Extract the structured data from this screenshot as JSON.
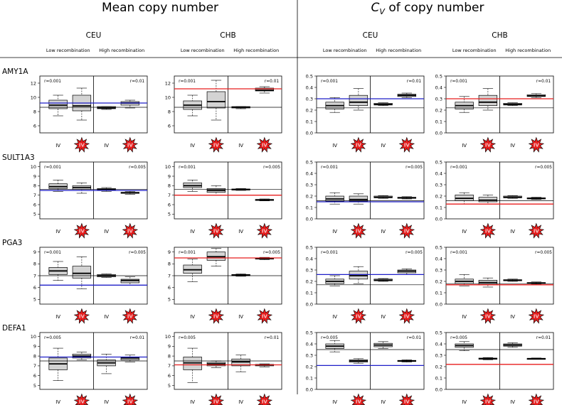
{
  "figure": {
    "left_title": "Mean copy number",
    "right_title_prefix": "C",
    "right_title_subscript": "V",
    "right_title_suffix": " of copy number",
    "populations": [
      "CEU",
      "CHB",
      "CEU",
      "CHB"
    ],
    "low_recombination_label": "Low recombination",
    "high_recombination_label": "High recombination",
    "tick_label_iv": "IV",
    "colors": {
      "blue_line": "#1f1fc8",
      "red_line": "#e81e1e",
      "star_fill": "#e61d1d",
      "star_text": "#f4c4c4",
      "box_fill": "#d3d3d3"
    }
  },
  "chart_data": [
    {
      "type": "box",
      "gene": "AMY1A",
      "measure": "Mean copy number",
      "population": "CEU",
      "yticks": [
        "12",
        "10",
        "8",
        "6"
      ],
      "ylim": [
        5,
        13
      ],
      "r_low": "r=0.001",
      "r_high": "r=0.01",
      "boxes": [
        [
          7.4,
          8.4,
          8.9,
          9.6,
          10.3
        ],
        [
          6.8,
          8.1,
          8.8,
          10.3,
          11.3
        ],
        [
          8.3,
          8.4,
          8.5,
          8.7,
          8.7
        ],
        [
          8.5,
          8.9,
          9.2,
          9.4,
          9.6
        ]
      ],
      "hlines": [
        {
          "y": 9.2,
          "color": "blue"
        },
        {
          "y": 8.6,
          "color": "black"
        }
      ]
    },
    {
      "type": "box",
      "gene": "AMY1A",
      "measure": "Mean copy number",
      "population": "CHB",
      "yticks": [
        "12",
        "10",
        "8",
        "6"
      ],
      "ylim": [
        5,
        13
      ],
      "r_low": "r=0.001",
      "r_high": "r=0.01",
      "boxes": [
        [
          7.4,
          8.3,
          8.9,
          9.5,
          10.3
        ],
        [
          6.8,
          8.5,
          9.4,
          10.8,
          12.4
        ],
        [
          8.4,
          8.5,
          8.6,
          8.7,
          8.7
        ],
        [
          10.6,
          10.9,
          11.0,
          11.3,
          11.5
        ]
      ],
      "hlines": [
        {
          "y": 11.2,
          "color": "red"
        },
        {
          "y": 8.6,
          "color": "black"
        }
      ]
    },
    {
      "type": "box",
      "gene": "AMY1A",
      "measure": "CV of copy number",
      "population": "CEU",
      "yticks": [
        "0.5",
        "0.4",
        "0.3",
        "0.2",
        "0.1",
        "0.0"
      ],
      "ylim": [
        0,
        0.5
      ],
      "r_low": "r=0.001",
      "r_high": "r=0.01",
      "boxes": [
        [
          0.18,
          0.21,
          0.24,
          0.27,
          0.31
        ],
        [
          0.2,
          0.24,
          0.27,
          0.33,
          0.39
        ],
        [
          0.24,
          0.245,
          0.25,
          0.26,
          0.265
        ],
        [
          0.31,
          0.32,
          0.33,
          0.34,
          0.35
        ]
      ],
      "hlines": [
        {
          "y": 0.3,
          "color": "blue"
        },
        {
          "y": 0.22,
          "color": "black"
        }
      ]
    },
    {
      "type": "box",
      "gene": "AMY1A",
      "measure": "CV of copy number",
      "population": "CHB",
      "yticks": [
        "0.5",
        "0.4",
        "0.3",
        "0.2",
        "0.1",
        "0.0"
      ],
      "ylim": [
        0,
        0.5
      ],
      "r_low": "r=0.001",
      "r_high": "r=0.01",
      "boxes": [
        [
          0.18,
          0.21,
          0.24,
          0.27,
          0.32
        ],
        [
          0.2,
          0.24,
          0.27,
          0.33,
          0.39
        ],
        [
          0.24,
          0.245,
          0.25,
          0.26,
          0.265
        ],
        [
          0.31,
          0.32,
          0.325,
          0.335,
          0.345
        ]
      ],
      "hlines": [
        {
          "y": 0.3,
          "color": "red"
        },
        {
          "y": 0.22,
          "color": "black"
        }
      ]
    },
    {
      "type": "box",
      "gene": "SULT1A3",
      "measure": "Mean copy number",
      "population": "CEU",
      "yticks": [
        "10",
        "9",
        "8",
        "7",
        "6",
        "5"
      ],
      "ylim": [
        4.5,
        10.5
      ],
      "r_low": "r=0.001",
      "r_high": "r=0.005",
      "boxes": [
        [
          7.4,
          7.7,
          7.9,
          8.2,
          8.6
        ],
        [
          7.2,
          7.6,
          7.8,
          8.0,
          8.3
        ],
        [
          7.4,
          7.5,
          7.6,
          7.7,
          7.8
        ],
        [
          7.1,
          7.2,
          7.25,
          7.3,
          7.4
        ]
      ],
      "hlines": [
        {
          "y": 7.6,
          "color": "black"
        },
        {
          "y": 7.5,
          "color": "blue"
        }
      ]
    },
    {
      "type": "box",
      "gene": "SULT1A3",
      "measure": "Mean copy number",
      "population": "CHB",
      "yticks": [
        "10",
        "9",
        "8",
        "7",
        "6",
        "5"
      ],
      "ylim": [
        4.5,
        10.5
      ],
      "r_low": "r=0.001",
      "r_high": "r=0.005",
      "boxes": [
        [
          7.4,
          7.8,
          8.0,
          8.3,
          8.6
        ],
        [
          7.0,
          7.3,
          7.5,
          7.7,
          8.0
        ],
        [
          7.5,
          7.55,
          7.6,
          7.65,
          7.7
        ],
        [
          6.4,
          6.45,
          6.5,
          6.55,
          6.6
        ]
      ],
      "hlines": [
        {
          "y": 7.6,
          "color": "black"
        },
        {
          "y": 7.0,
          "color": "red"
        }
      ]
    },
    {
      "type": "box",
      "gene": "SULT1A3",
      "measure": "CV of copy number",
      "population": "CEU",
      "yticks": [
        "0.5",
        "0.4",
        "0.3",
        "0.2",
        "0.1",
        "0.0"
      ],
      "ylim": [
        0,
        0.5
      ],
      "r_low": "r=0.001",
      "r_high": "r=0.005",
      "boxes": [
        [
          0.13,
          0.155,
          0.175,
          0.2,
          0.23
        ],
        [
          0.13,
          0.155,
          0.17,
          0.2,
          0.22
        ],
        [
          0.18,
          0.185,
          0.19,
          0.2,
          0.205
        ],
        [
          0.175,
          0.18,
          0.185,
          0.19,
          0.195
        ]
      ],
      "hlines": [
        {
          "y": 0.16,
          "color": "black"
        },
        {
          "y": 0.15,
          "color": "blue"
        }
      ]
    },
    {
      "type": "box",
      "gene": "SULT1A3",
      "measure": "CV of copy number",
      "population": "CHB",
      "yticks": [
        "0.5",
        "0.4",
        "0.3",
        "0.2",
        "0.1",
        "0.0"
      ],
      "ylim": [
        0,
        0.5
      ],
      "r_low": "r=0.001",
      "r_high": "r=0.005",
      "boxes": [
        [
          0.13,
          0.16,
          0.18,
          0.21,
          0.23
        ],
        [
          0.13,
          0.15,
          0.165,
          0.19,
          0.21
        ],
        [
          0.18,
          0.185,
          0.19,
          0.2,
          0.205
        ],
        [
          0.17,
          0.175,
          0.18,
          0.185,
          0.19
        ]
      ],
      "hlines": [
        {
          "y": 0.16,
          "color": "black"
        },
        {
          "y": 0.13,
          "color": "red"
        }
      ]
    },
    {
      "type": "box",
      "gene": "PGA3",
      "measure": "Mean copy number",
      "population": "CEU",
      "yticks": [
        "9",
        "8",
        "7",
        "6",
        "5"
      ],
      "ylim": [
        4.6,
        9.4
      ],
      "r_low": "r=0.001",
      "r_high": "r=0.005",
      "boxes": [
        [
          6.6,
          7.1,
          7.4,
          7.7,
          8.2
        ],
        [
          5.9,
          6.8,
          7.2,
          7.8,
          8.6
        ],
        [
          6.85,
          6.9,
          7.0,
          7.1,
          7.15
        ],
        [
          6.2,
          6.4,
          6.6,
          6.7,
          6.9
        ]
      ],
      "hlines": [
        {
          "y": 7.0,
          "color": "black"
        },
        {
          "y": 6.2,
          "color": "blue"
        }
      ]
    },
    {
      "type": "box",
      "gene": "PGA3",
      "measure": "Mean copy number",
      "population": "CHB",
      "yticks": [
        "9",
        "8",
        "7",
        "6",
        "5"
      ],
      "ylim": [
        4.6,
        9.4
      ],
      "r_low": "r=0.001",
      "r_high": "r=0.005",
      "boxes": [
        [
          6.5,
          7.2,
          7.5,
          7.9,
          8.4
        ],
        [
          7.8,
          8.3,
          8.6,
          9.0,
          9.3
        ],
        [
          6.95,
          7.0,
          7.05,
          7.1,
          7.15
        ],
        [
          8.35,
          8.4,
          8.45,
          8.5,
          8.55
        ]
      ],
      "hlines": [
        {
          "y": 8.5,
          "color": "red"
        },
        {
          "y": 7.0,
          "color": "black"
        }
      ]
    },
    {
      "type": "box",
      "gene": "PGA3",
      "measure": "CV of copy number",
      "population": "CEU",
      "yticks": [
        "0.5",
        "0.4",
        "0.3",
        "0.2",
        "0.1",
        "0.0"
      ],
      "ylim": [
        0,
        0.5
      ],
      "r_low": "r=0.001",
      "r_high": "r=0.005",
      "boxes": [
        [
          0.16,
          0.18,
          0.2,
          0.22,
          0.25
        ],
        [
          0.18,
          0.22,
          0.25,
          0.29,
          0.33
        ],
        [
          0.2,
          0.205,
          0.21,
          0.22,
          0.225
        ],
        [
          0.26,
          0.275,
          0.29,
          0.3,
          0.31
        ]
      ],
      "hlines": [
        {
          "y": 0.26,
          "color": "blue"
        },
        {
          "y": 0.17,
          "color": "black"
        }
      ]
    },
    {
      "type": "box",
      "gene": "PGA3",
      "measure": "CV of copy number",
      "population": "CHB",
      "yticks": [
        "0.5",
        "0.4",
        "0.3",
        "0.2",
        "0.1",
        "0.0"
      ],
      "ylim": [
        0,
        0.5
      ],
      "r_low": "r=0.001",
      "r_high": "r=0.005",
      "boxes": [
        [
          0.16,
          0.18,
          0.2,
          0.22,
          0.26
        ],
        [
          0.15,
          0.17,
          0.19,
          0.21,
          0.23
        ],
        [
          0.2,
          0.205,
          0.21,
          0.215,
          0.22
        ],
        [
          0.175,
          0.18,
          0.185,
          0.19,
          0.195
        ]
      ],
      "hlines": [
        {
          "y": 0.18,
          "color": "black"
        },
        {
          "y": 0.17,
          "color": "red"
        }
      ]
    },
    {
      "type": "box",
      "gene": "DEFA1",
      "measure": "Mean copy number",
      "population": "CEU",
      "yticks": [
        "10",
        "9",
        "8",
        "7",
        "6",
        "5"
      ],
      "ylim": [
        4.6,
        10.4
      ],
      "r_low": "r=0.005",
      "r_high": "r=0.01",
      "boxes": [
        [
          5.5,
          6.6,
          7.2,
          7.8,
          8.8
        ],
        [
          7.6,
          7.8,
          8.0,
          8.2,
          8.4
        ],
        [
          6.2,
          7.0,
          7.3,
          7.6,
          8.2
        ],
        [
          7.4,
          7.6,
          7.8,
          7.9,
          8.1
        ]
      ],
      "hlines": [
        {
          "y": 7.9,
          "color": "blue"
        },
        {
          "y": 7.5,
          "color": "black"
        }
      ]
    },
    {
      "type": "box",
      "gene": "DEFA1",
      "measure": "Mean copy number",
      "population": "CHB",
      "yticks": [
        "10",
        "9",
        "8",
        "7",
        "6",
        "5"
      ],
      "ylim": [
        4.6,
        10.4
      ],
      "r_low": "r=0.005",
      "r_high": "r=0.01",
      "boxes": [
        [
          5.3,
          6.6,
          7.3,
          7.9,
          8.8
        ],
        [
          6.8,
          7.0,
          7.2,
          7.35,
          7.5
        ],
        [
          6.4,
          7.0,
          7.4,
          7.7,
          8.1
        ],
        [
          6.9,
          7.0,
          7.1,
          7.15,
          7.2
        ]
      ],
      "hlines": [
        {
          "y": 7.5,
          "color": "black"
        },
        {
          "y": 7.1,
          "color": "red"
        }
      ]
    },
    {
      "type": "box",
      "gene": "DEFA1",
      "measure": "CV of copy number",
      "population": "CEU",
      "yticks": [
        "0.5",
        "0.4",
        "0.3",
        "0.2",
        "0.1",
        "0.0"
      ],
      "ylim": [
        0,
        0.5
      ],
      "r_low": "r=0.005",
      "r_high": "r=0.01",
      "boxes": [
        [
          0.33,
          0.36,
          0.38,
          0.4,
          0.43
        ],
        [
          0.23,
          0.24,
          0.25,
          0.26,
          0.27
        ],
        [
          0.36,
          0.375,
          0.39,
          0.405,
          0.42
        ],
        [
          0.24,
          0.245,
          0.25,
          0.255,
          0.26
        ]
      ],
      "hlines": [
        {
          "y": 0.35,
          "color": "black"
        },
        {
          "y": 0.21,
          "color": "blue"
        }
      ]
    },
    {
      "type": "box",
      "gene": "DEFA1",
      "measure": "CV of copy number",
      "population": "CHB",
      "yticks": [
        "0.5",
        "0.4",
        "0.3",
        "0.2",
        "0.1",
        "0.0"
      ],
      "ylim": [
        0,
        0.5
      ],
      "r_low": "r=0.005",
      "r_high": "r=0.01",
      "boxes": [
        [
          0.34,
          0.37,
          0.385,
          0.4,
          0.42
        ],
        [
          0.26,
          0.265,
          0.27,
          0.275,
          0.28
        ],
        [
          0.37,
          0.38,
          0.39,
          0.4,
          0.41
        ],
        [
          0.265,
          0.268,
          0.27,
          0.273,
          0.276
        ]
      ],
      "hlines": [
        {
          "y": 0.35,
          "color": "black"
        },
        {
          "y": 0.22,
          "color": "red"
        }
      ]
    }
  ]
}
